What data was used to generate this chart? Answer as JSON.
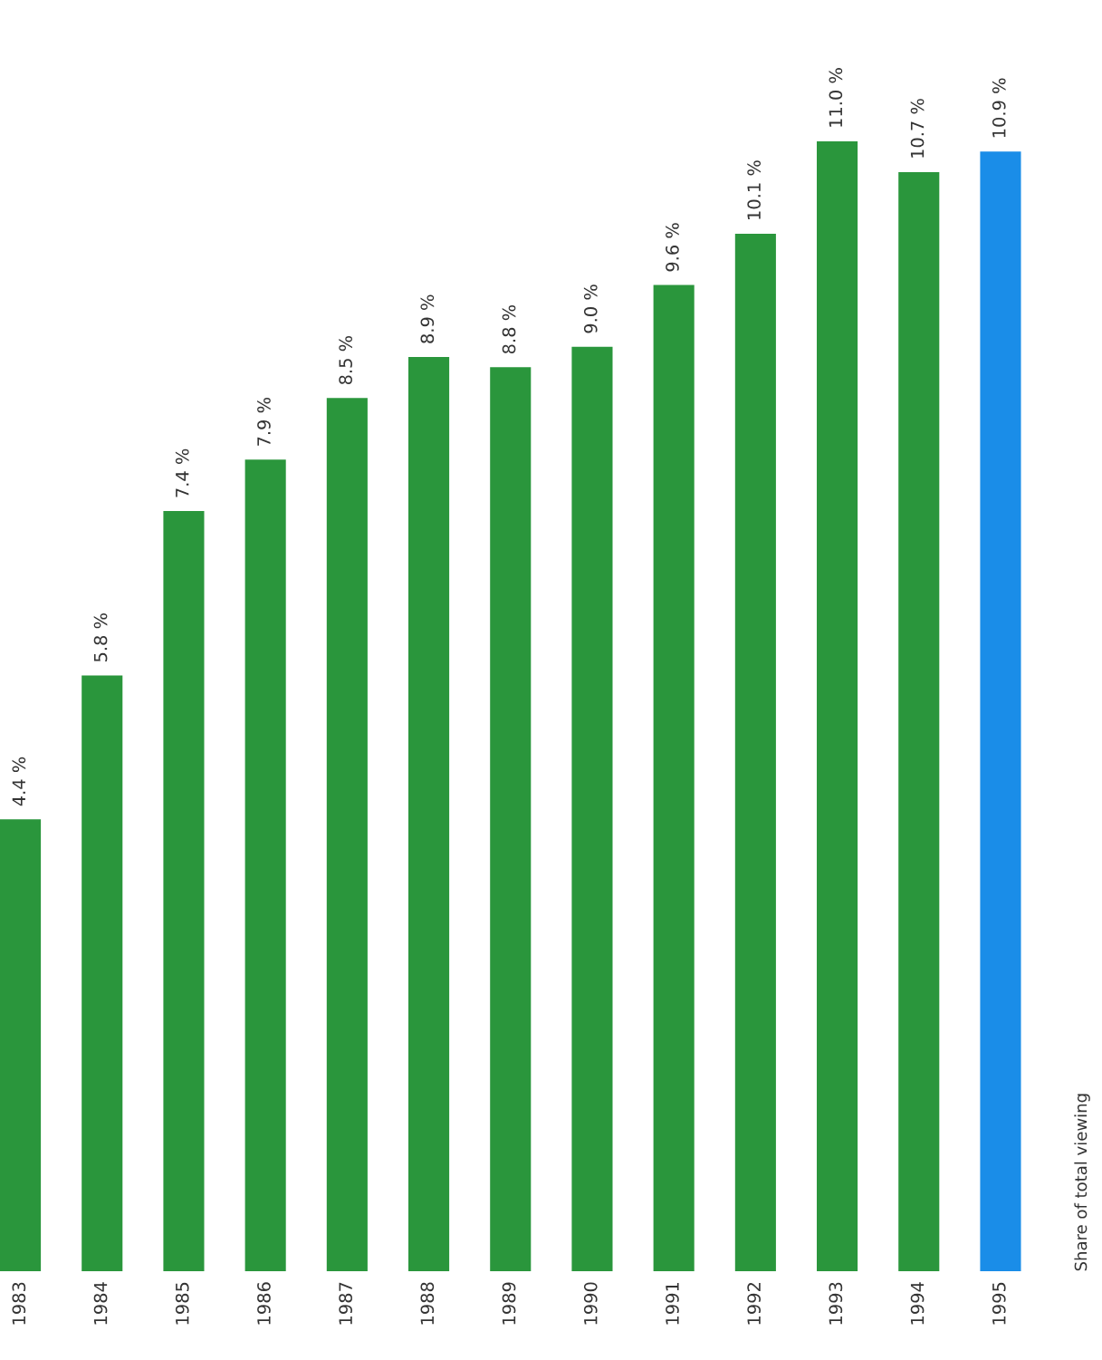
{
  "chart_data": {
    "type": "bar",
    "categories": [
      "1983",
      "1984",
      "1985",
      "1986",
      "1987",
      "1988",
      "1989",
      "1990",
      "1991",
      "1992",
      "1993",
      "1994",
      "1995"
    ],
    "values": [
      4.4,
      5.8,
      7.4,
      7.9,
      8.5,
      8.9,
      8.8,
      9.0,
      9.6,
      10.1,
      11.0,
      10.7,
      10.9
    ],
    "colors": [
      "#2a963c",
      "#2a963c",
      "#2a963c",
      "#2a963c",
      "#2a963c",
      "#2a963c",
      "#2a963c",
      "#2a963c",
      "#2a963c",
      "#2a963c",
      "#2a963c",
      "#2a963c",
      "#1a8de8"
    ],
    "value_labels": [
      "4.4 %",
      "5.8 %",
      "7.4 %",
      "7.9 %",
      "8.5 %",
      "8.9 %",
      "8.8 %",
      "9.0 %",
      "9.6 %",
      "10.1 %",
      "11.0 %",
      "10.7 %",
      "10.9 %"
    ],
    "ylabel": "Share of total viewing",
    "grid": false,
    "legend": false,
    "tick_labels": "x"
  }
}
